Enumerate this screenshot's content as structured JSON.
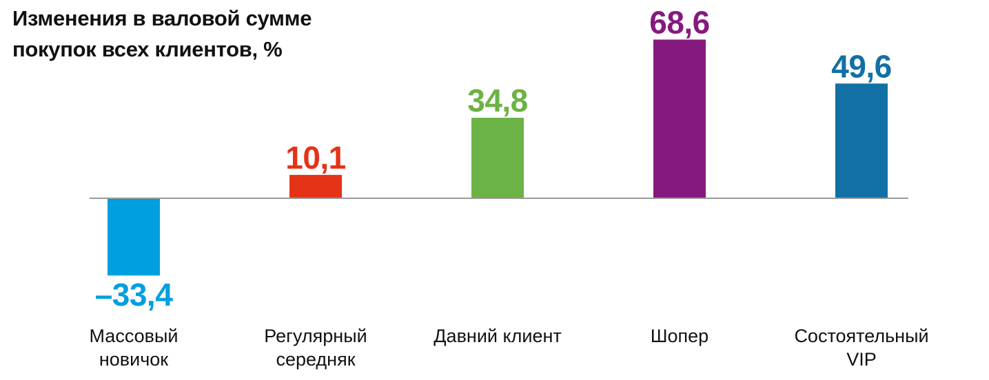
{
  "chart_data": {
    "type": "bar",
    "title": "Изменения в валовой сумме покупок всех клиентов, %",
    "categories": [
      [
        "Массовый",
        "новичок"
      ],
      [
        "Регулярный",
        "середняк"
      ],
      [
        "Давний клиент"
      ],
      [
        "Шопер"
      ],
      [
        "Состоятельный",
        "VIP"
      ]
    ],
    "values": [
      -33.4,
      10.1,
      34.8,
      68.6,
      49.6
    ],
    "value_labels": [
      "–33,4",
      "10,1",
      "34,8",
      "68,6",
      "49,6"
    ],
    "colors": [
      "#009fe0",
      "#e53318",
      "#6bb344",
      "#86197e",
      "#1270a5"
    ],
    "xlabel": "",
    "ylabel": "",
    "ylim": [
      -40,
      80
    ],
    "grid": false,
    "legend": "none"
  }
}
